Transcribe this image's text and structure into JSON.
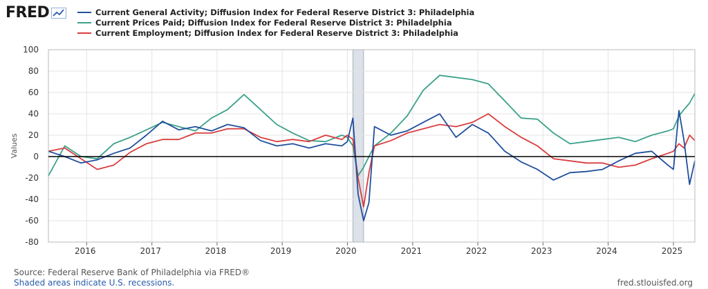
{
  "logo": {
    "text": "FRED"
  },
  "footer": {
    "source": "Source: Federal Reserve Bank of Philadelphia via FRED®",
    "recession_note": "Shaded areas indicate U.S. recessions.",
    "url": "fred.stlouisfed.org"
  },
  "chart_data": {
    "type": "line",
    "ylabel": "Values",
    "ylim": [
      -80,
      100
    ],
    "yticks": [
      100,
      80,
      60,
      40,
      20,
      0,
      -20,
      -40,
      -60,
      -80
    ],
    "xlim": [
      "2015-06-01",
      "2025-05-01"
    ],
    "xticks": [
      "2016",
      "2017",
      "2018",
      "2019",
      "2020",
      "2021",
      "2022",
      "2023",
      "2024",
      "2025"
    ],
    "grid": true,
    "zero_line": true,
    "recessions": [
      {
        "start": "2020-02-01",
        "end": "2020-04-01"
      }
    ],
    "legend_position": "top-left",
    "x": [
      "2015-06",
      "2015-09",
      "2015-12",
      "2016-03",
      "2016-06",
      "2016-09",
      "2016-12",
      "2017-03",
      "2017-06",
      "2017-09",
      "2017-12",
      "2018-03",
      "2018-06",
      "2018-09",
      "2018-12",
      "2019-03",
      "2019-06",
      "2019-09",
      "2019-12",
      "2020-01",
      "2020-02",
      "2020-03",
      "2020-04",
      "2020-05",
      "2020-06",
      "2020-09",
      "2020-12",
      "2021-03",
      "2021-06",
      "2021-09",
      "2021-12",
      "2022-03",
      "2022-06",
      "2022-09",
      "2022-12",
      "2023-03",
      "2023-06",
      "2023-09",
      "2023-12",
      "2024-03",
      "2024-06",
      "2024-09",
      "2024-12",
      "2025-01",
      "2025-02",
      "2025-03",
      "2025-04",
      "2025-05"
    ],
    "series": [
      {
        "name": "Current General Activity; Diffusion Index for Federal Reserve District 3: Philadelphia",
        "color": "#1f4e9c",
        "values": [
          5,
          0,
          -6,
          -3,
          3,
          8,
          20,
          33,
          25,
          28,
          24,
          30,
          27,
          15,
          10,
          12,
          8,
          12,
          10,
          14,
          36,
          -35,
          -60,
          -43,
          28,
          20,
          24,
          32,
          40,
          18,
          30,
          22,
          5,
          -5,
          -12,
          -22,
          -15,
          -14,
          -12,
          -4,
          3,
          5,
          -8,
          -12,
          43,
          15,
          -26,
          -4
        ]
      },
      {
        "name": "Current Prices Paid; Diffusion Index for Federal Reserve District 3: Philadelphia",
        "color": "#3aa18a",
        "values": [
          -18,
          10,
          0,
          -2,
          12,
          18,
          25,
          32,
          28,
          24,
          36,
          44,
          58,
          44,
          30,
          22,
          15,
          14,
          20,
          18,
          10,
          -18,
          -10,
          0,
          10,
          22,
          38,
          62,
          76,
          74,
          72,
          68,
          52,
          36,
          35,
          22,
          12,
          14,
          16,
          18,
          14,
          20,
          24,
          26,
          38,
          44,
          50,
          59
        ]
      },
      {
        "name": "Current Employment; Diffusion Index for Federal Reserve District 3: Philadelphia",
        "color": "#d93d3d",
        "values": [
          5,
          8,
          -2,
          -12,
          -8,
          4,
          12,
          16,
          16,
          22,
          22,
          26,
          26,
          18,
          14,
          16,
          14,
          20,
          16,
          20,
          16,
          -20,
          -47,
          -15,
          10,
          15,
          22,
          26,
          30,
          28,
          32,
          40,
          28,
          18,
          10,
          -2,
          -4,
          -6,
          -6,
          -10,
          -8,
          -2,
          3,
          5,
          12,
          8,
          20,
          15
        ]
      }
    ]
  }
}
